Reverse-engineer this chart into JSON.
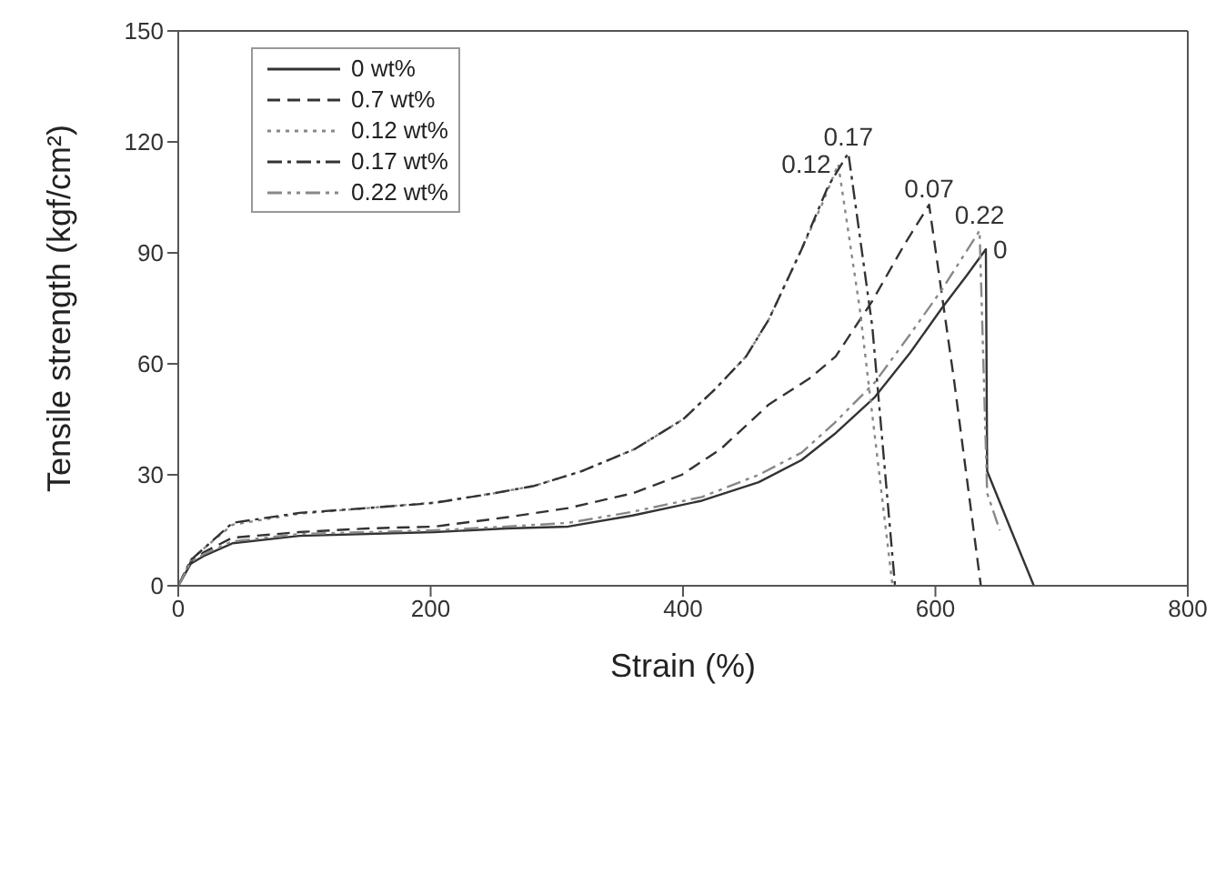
{
  "chart_data": {
    "type": "line",
    "xlabel": "Strain (%)",
    "ylabel": "Tensile strength (kgf/cm²)",
    "xlim": [
      0,
      800
    ],
    "xticks": [
      0,
      200,
      400,
      600,
      800
    ],
    "ylim": [
      0,
      150
    ],
    "yticks": [
      0,
      30,
      60,
      90,
      120,
      150
    ],
    "legend": "top left",
    "marker": "none",
    "series": [
      {
        "name": "0 wt%",
        "color": "#333333",
        "line_style": "solid",
        "x": [
          0,
          10,
          20,
          43,
          96,
          150,
          203,
          260,
          309,
          360,
          415,
          460,
          494,
          520,
          552,
          580,
          605,
          625,
          640,
          641,
          660,
          678
        ],
        "values": [
          0,
          6,
          8,
          11.5,
          13.5,
          14,
          14.5,
          15.5,
          16,
          19,
          23,
          28,
          34,
          41,
          51,
          63,
          75,
          84,
          91,
          31,
          15,
          0
        ]
      },
      {
        "name": "0.7 wt%",
        "color": "#333333",
        "line_style": "dashed",
        "x": [
          0,
          10,
          20,
          43,
          96,
          150,
          203,
          260,
          309,
          360,
          399,
          430,
          468,
          500,
          521,
          550,
          575,
          595,
          615,
          636
        ],
        "values": [
          0,
          6.5,
          9,
          13,
          14.5,
          15.5,
          16,
          18.5,
          21,
          25,
          30,
          37,
          49,
          56,
          62,
          77,
          92,
          103,
          55,
          0
        ]
      },
      {
        "name": "0.12 wt%",
        "color": "#888888",
        "line_style": "dotted",
        "x": [
          0,
          10,
          20,
          43,
          96,
          150,
          203,
          250,
          282,
          320,
          362,
          400,
          425,
          450,
          468,
          494,
          510,
          523,
          540,
          566
        ],
        "values": [
          0,
          7,
          10,
          16.5,
          19.5,
          21,
          22.5,
          25,
          27,
          31,
          37,
          45,
          53,
          62,
          72,
          91,
          103,
          114,
          75,
          0
        ]
      },
      {
        "name": "0.17 wt%",
        "color": "#333333",
        "line_style": "dashdot",
        "x": [
          0,
          10,
          20,
          43,
          96,
          150,
          203,
          250,
          282,
          320,
          362,
          400,
          425,
          450,
          468,
          494,
          515,
          531,
          550,
          568
        ],
        "values": [
          0,
          7,
          10,
          17,
          19.7,
          21,
          22.4,
          25,
          27,
          31,
          37,
          45,
          53,
          62,
          72,
          91,
          108,
          117,
          70,
          0
        ]
      },
      {
        "name": "0.22 wt%",
        "color": "#888888",
        "line_style": "dashdotdot",
        "x": [
          0,
          10,
          20,
          43,
          96,
          150,
          203,
          260,
          309,
          360,
          415,
          460,
          494,
          520,
          552,
          580,
          605,
          620,
          635,
          641,
          651
        ],
        "values": [
          0,
          6.5,
          8.5,
          12,
          14,
          14.5,
          15,
          16,
          17,
          20,
          24,
          30,
          36,
          44,
          55,
          68,
          80,
          88,
          96,
          25,
          15
        ]
      }
    ],
    "annotations": [
      {
        "text": "0.17",
        "x": 531,
        "y": 117
      },
      {
        "text": "0.12",
        "x": 523,
        "y": 114
      },
      {
        "text": "0.07",
        "x": 595,
        "y": 103
      },
      {
        "text": "0.22",
        "x": 635,
        "y": 96
      },
      {
        "text": "0",
        "x": 640,
        "y": 91
      }
    ]
  }
}
